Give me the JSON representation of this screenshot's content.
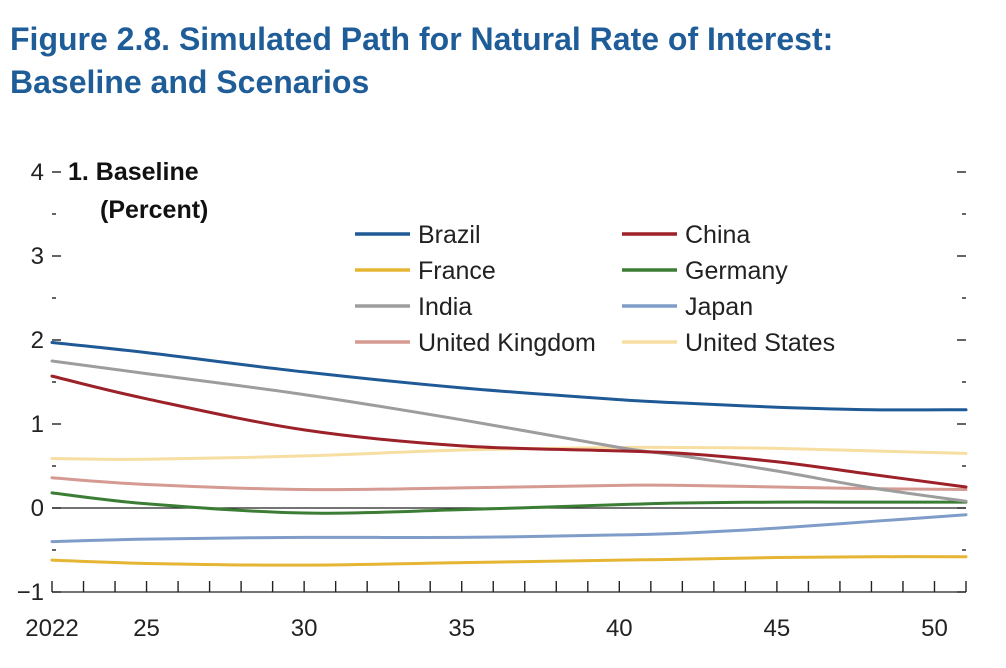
{
  "figure": {
    "title_line1": "Figure 2.8.  Simulated Path for Natural Rate of Interest:",
    "title_line2": "Baseline and Scenarios"
  },
  "chart_data": {
    "type": "line",
    "panel_title": "1. Baseline",
    "unit_label": "(Percent)",
    "xlim": [
      2022,
      2051
    ],
    "ylim": [
      -1,
      4
    ],
    "x_ticks": [
      {
        "value": 2022,
        "label": "2022"
      },
      {
        "value": 2025,
        "label": "25"
      },
      {
        "value": 2030,
        "label": "30"
      },
      {
        "value": 2035,
        "label": "35"
      },
      {
        "value": 2040,
        "label": "40"
      },
      {
        "value": 2045,
        "label": "45"
      },
      {
        "value": 2050,
        "label": "50"
      }
    ],
    "y_ticks": [
      {
        "value": 4,
        "label": "4"
      },
      {
        "value": 3,
        "label": "3"
      },
      {
        "value": 2,
        "label": "2"
      },
      {
        "value": 1,
        "label": "1"
      },
      {
        "value": 0,
        "label": "0"
      },
      {
        "value": -1,
        "label": "−1"
      }
    ],
    "legend_placement": "top-right",
    "x": [
      2022,
      2025,
      2030,
      2035,
      2040,
      2042,
      2045,
      2048,
      2051
    ],
    "series": [
      {
        "name": "Brazil",
        "color": "#1f5a96",
        "values": [
          1.97,
          1.85,
          1.62,
          1.43,
          1.29,
          1.25,
          1.2,
          1.17,
          1.17
        ]
      },
      {
        "name": "China",
        "color": "#9c2129",
        "values": [
          1.57,
          1.3,
          0.93,
          0.74,
          0.68,
          0.65,
          0.55,
          0.4,
          0.25
        ]
      },
      {
        "name": "France",
        "color": "#e5b534",
        "values": [
          -0.62,
          -0.66,
          -0.68,
          -0.65,
          -0.62,
          -0.61,
          -0.59,
          -0.58,
          -0.58
        ]
      },
      {
        "name": "Germany",
        "color": "#3b7d34",
        "values": [
          0.18,
          0.05,
          -0.06,
          -0.02,
          0.04,
          0.06,
          0.07,
          0.07,
          0.07
        ]
      },
      {
        "name": "India",
        "color": "#9d9d9d",
        "values": [
          1.75,
          1.6,
          1.35,
          1.05,
          0.72,
          0.62,
          0.44,
          0.24,
          0.08
        ]
      },
      {
        "name": "Japan",
        "color": "#7f9dc8",
        "values": [
          -0.4,
          -0.37,
          -0.35,
          -0.35,
          -0.32,
          -0.3,
          -0.24,
          -0.16,
          -0.08
        ]
      },
      {
        "name": "United Kingdom",
        "color": "#d59a92",
        "values": [
          0.36,
          0.28,
          0.22,
          0.24,
          0.27,
          0.27,
          0.25,
          0.23,
          0.22
        ]
      },
      {
        "name": "United States",
        "color": "#f7dea2",
        "values": [
          0.59,
          0.58,
          0.62,
          0.69,
          0.72,
          0.72,
          0.71,
          0.68,
          0.65
        ]
      }
    ]
  }
}
